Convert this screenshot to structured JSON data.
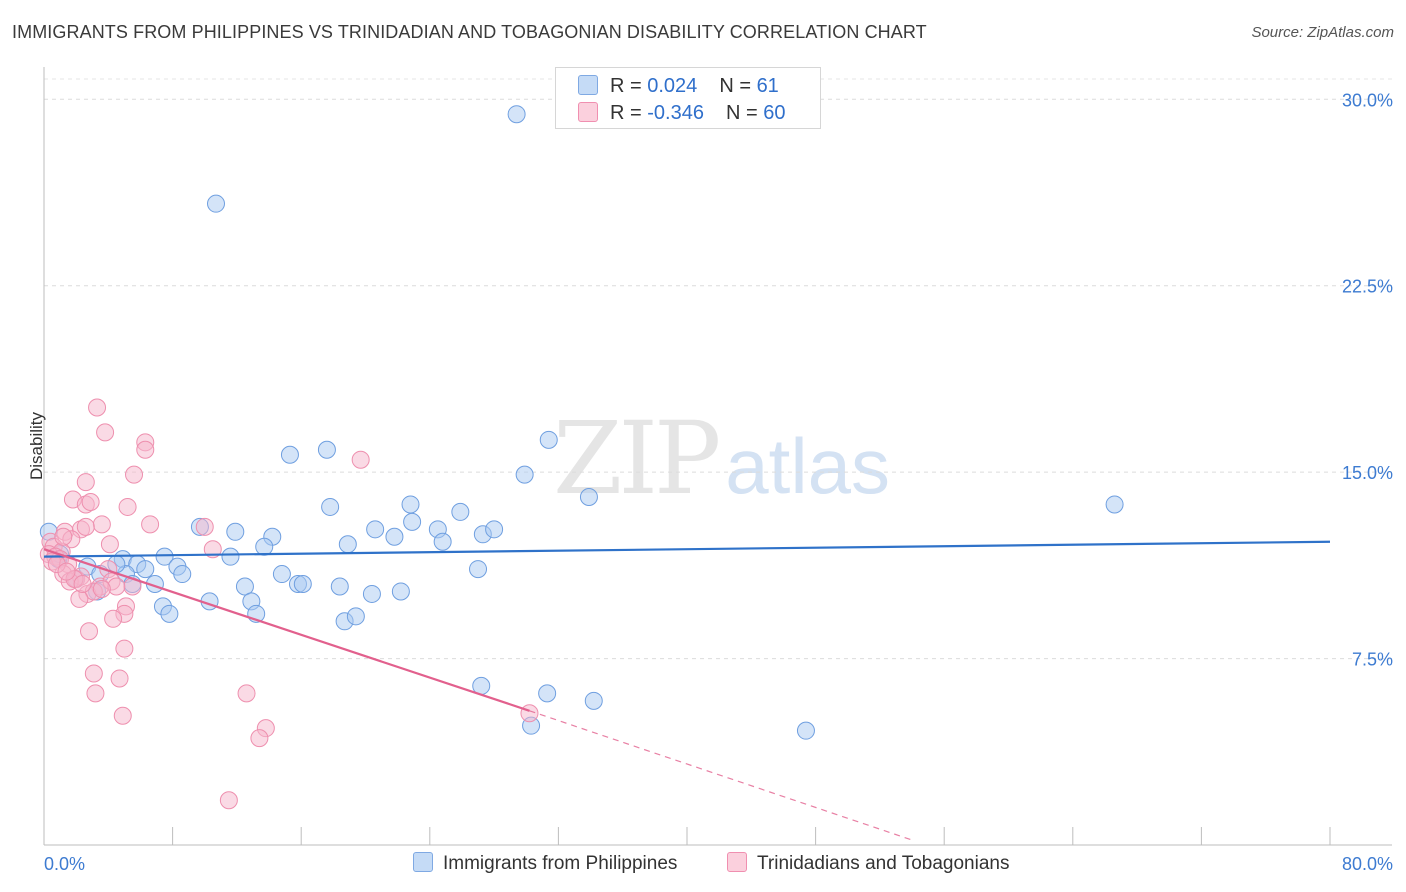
{
  "header": {
    "title": "IMMIGRANTS FROM PHILIPPINES VS TRINIDADIAN AND TOBAGONIAN DISABILITY CORRELATION CHART",
    "source": "Source: ZipAtlas.com"
  },
  "watermark": {
    "zip": "ZIP",
    "atlas": "atlas"
  },
  "legend": {
    "rows": [
      {
        "r_label": "R = ",
        "r_value": "0.024",
        "n_label": "N = ",
        "n_value": "61",
        "color": "#aac9f1"
      },
      {
        "r_label": "R = ",
        "r_value": "-0.346",
        "n_label": "N = ",
        "n_value": "60",
        "color": "#f6b6cb"
      }
    ]
  },
  "chart_data": {
    "type": "scatter",
    "title": "IMMIGRANTS FROM PHILIPPINES VS TRINIDADIAN AND TOBAGONIAN DISABILITY CORRELATION CHART",
    "xlabel": "",
    "ylabel": "Disability",
    "xlim": [
      0,
      80
    ],
    "ylim": [
      0,
      31.5
    ],
    "x_tick_labels": [
      "0.0%",
      "80.0%"
    ],
    "y_ticks": [
      7.5,
      15.0,
      22.5,
      30.0
    ],
    "y_tick_labels": [
      "7.5%",
      "15.0%",
      "22.5%",
      "30.0%"
    ],
    "grid": true,
    "series": [
      {
        "name": "Immigrants from Philippines",
        "color": "#aac9f1",
        "stroke": "#6f9fe0",
        "line_color": "#2f72c9",
        "trend": {
          "x": [
            0,
            80
          ],
          "y": [
            11.6,
            12.2
          ]
        },
        "points": [
          [
            29.4,
            29.4
          ],
          [
            10.7,
            25.8
          ],
          [
            31.4,
            16.3
          ],
          [
            15.3,
            15.7
          ],
          [
            17.6,
            15.9
          ],
          [
            29.9,
            14.9
          ],
          [
            33.9,
            14.0
          ],
          [
            66.6,
            13.7
          ],
          [
            17.8,
            13.6
          ],
          [
            22.8,
            13.7
          ],
          [
            25.9,
            13.4
          ],
          [
            9.7,
            12.8
          ],
          [
            11.9,
            12.6
          ],
          [
            20.6,
            12.7
          ],
          [
            22.9,
            13.0
          ],
          [
            24.5,
            12.7
          ],
          [
            27.3,
            12.5
          ],
          [
            28.0,
            12.7
          ],
          [
            14.2,
            12.4
          ],
          [
            21.8,
            12.4
          ],
          [
            13.7,
            12.0
          ],
          [
            18.9,
            12.1
          ],
          [
            24.8,
            12.2
          ],
          [
            11.6,
            11.6
          ],
          [
            7.5,
            11.6
          ],
          [
            4.9,
            11.5
          ],
          [
            0.9,
            11.5
          ],
          [
            5.8,
            11.3
          ],
          [
            8.3,
            11.2
          ],
          [
            6.3,
            11.1
          ],
          [
            2.7,
            11.2
          ],
          [
            3.5,
            10.9
          ],
          [
            2.0,
            10.7
          ],
          [
            5.1,
            10.9
          ],
          [
            8.6,
            10.9
          ],
          [
            14.8,
            10.9
          ],
          [
            6.9,
            10.5
          ],
          [
            12.5,
            10.4
          ],
          [
            15.8,
            10.5
          ],
          [
            16.1,
            10.5
          ],
          [
            18.4,
            10.4
          ],
          [
            20.4,
            10.1
          ],
          [
            22.2,
            10.2
          ],
          [
            27.0,
            11.1
          ],
          [
            3.3,
            10.2
          ],
          [
            5.5,
            10.5
          ],
          [
            12.9,
            9.8
          ],
          [
            10.3,
            9.8
          ],
          [
            7.4,
            9.6
          ],
          [
            7.8,
            9.3
          ],
          [
            13.2,
            9.3
          ],
          [
            18.7,
            9.0
          ],
          [
            19.4,
            9.2
          ],
          [
            27.2,
            6.4
          ],
          [
            31.3,
            6.1
          ],
          [
            34.2,
            5.8
          ],
          [
            30.3,
            4.8
          ],
          [
            47.4,
            4.6
          ],
          [
            0.3,
            12.6
          ],
          [
            1.0,
            11.7
          ],
          [
            4.5,
            11.3
          ]
        ]
      },
      {
        "name": "Trinidadians and Tobagonians",
        "color": "#f6b6cb",
        "stroke": "#ee8fae",
        "line_color": "#e2608d",
        "trend": {
          "x": [
            0,
            30.2
          ],
          "y": [
            11.9,
            5.4
          ]
        },
        "trend_dashed": {
          "x": [
            30.2,
            54.0
          ],
          "y": [
            5.4,
            0.2
          ]
        },
        "points": [
          [
            3.3,
            17.6
          ],
          [
            3.8,
            16.6
          ],
          [
            6.3,
            16.2
          ],
          [
            6.3,
            15.9
          ],
          [
            19.7,
            15.5
          ],
          [
            5.6,
            14.9
          ],
          [
            2.6,
            14.6
          ],
          [
            1.8,
            13.9
          ],
          [
            2.6,
            13.7
          ],
          [
            2.9,
            13.8
          ],
          [
            5.2,
            13.6
          ],
          [
            6.6,
            12.9
          ],
          [
            3.6,
            12.9
          ],
          [
            1.3,
            12.6
          ],
          [
            2.3,
            12.7
          ],
          [
            2.6,
            12.8
          ],
          [
            1.7,
            12.3
          ],
          [
            10.0,
            12.8
          ],
          [
            0.4,
            12.2
          ],
          [
            4.1,
            12.1
          ],
          [
            0.6,
            12.0
          ],
          [
            1.1,
            11.8
          ],
          [
            10.5,
            11.9
          ],
          [
            0.3,
            11.7
          ],
          [
            0.7,
            11.6
          ],
          [
            1.0,
            11.5
          ],
          [
            0.5,
            11.4
          ],
          [
            1.5,
            11.3
          ],
          [
            4.0,
            11.1
          ],
          [
            1.2,
            10.9
          ],
          [
            2.0,
            10.7
          ],
          [
            2.3,
            10.8
          ],
          [
            1.6,
            10.6
          ],
          [
            3.5,
            10.4
          ],
          [
            1.9,
            10.7
          ],
          [
            4.2,
            10.6
          ],
          [
            5.5,
            10.4
          ],
          [
            4.5,
            10.4
          ],
          [
            2.7,
            10.1
          ],
          [
            3.1,
            10.2
          ],
          [
            2.2,
            9.9
          ],
          [
            5.1,
            9.6
          ],
          [
            5.0,
            9.3
          ],
          [
            4.3,
            9.1
          ],
          [
            2.8,
            8.6
          ],
          [
            5.0,
            7.9
          ],
          [
            3.1,
            6.9
          ],
          [
            4.7,
            6.7
          ],
          [
            3.2,
            6.1
          ],
          [
            12.6,
            6.1
          ],
          [
            4.9,
            5.2
          ],
          [
            30.2,
            5.3
          ],
          [
            13.8,
            4.7
          ],
          [
            13.4,
            4.3
          ],
          [
            11.5,
            1.8
          ],
          [
            1.2,
            12.4
          ],
          [
            2.4,
            10.5
          ],
          [
            0.8,
            11.3
          ],
          [
            1.4,
            11.0
          ],
          [
            3.6,
            10.3
          ]
        ]
      }
    ]
  }
}
